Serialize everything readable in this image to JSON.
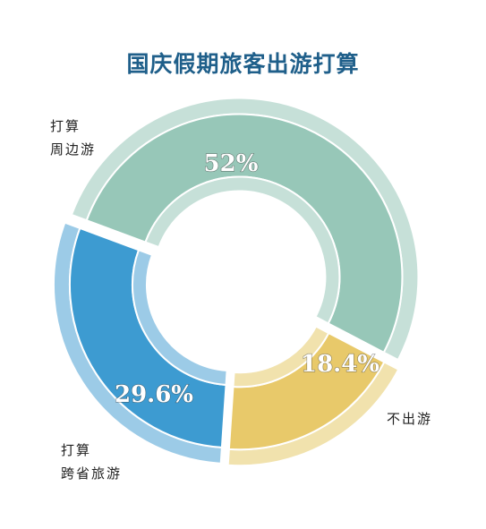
{
  "chart_data": {
    "type": "pie",
    "title": "国庆假期旅客出游打算",
    "donut": true,
    "slices": [
      {
        "label_line1": "打算",
        "label_line2": "周边游",
        "value": 52,
        "value_label": "52%",
        "color": "#97c7b8",
        "rim_color": "#c6e0d8"
      },
      {
        "label_line1": "",
        "label_line2": "不出游",
        "value": 18.4,
        "value_label": "18.4%",
        "color": "#e8c96a",
        "rim_color": "#f1e2ad"
      },
      {
        "label_line1": "打算",
        "label_line2": "跨省旅游",
        "value": 29.6,
        "value_label": "29.6%",
        "color": "#3d9bd1",
        "rim_color": "#9ccbe7"
      }
    ]
  }
}
